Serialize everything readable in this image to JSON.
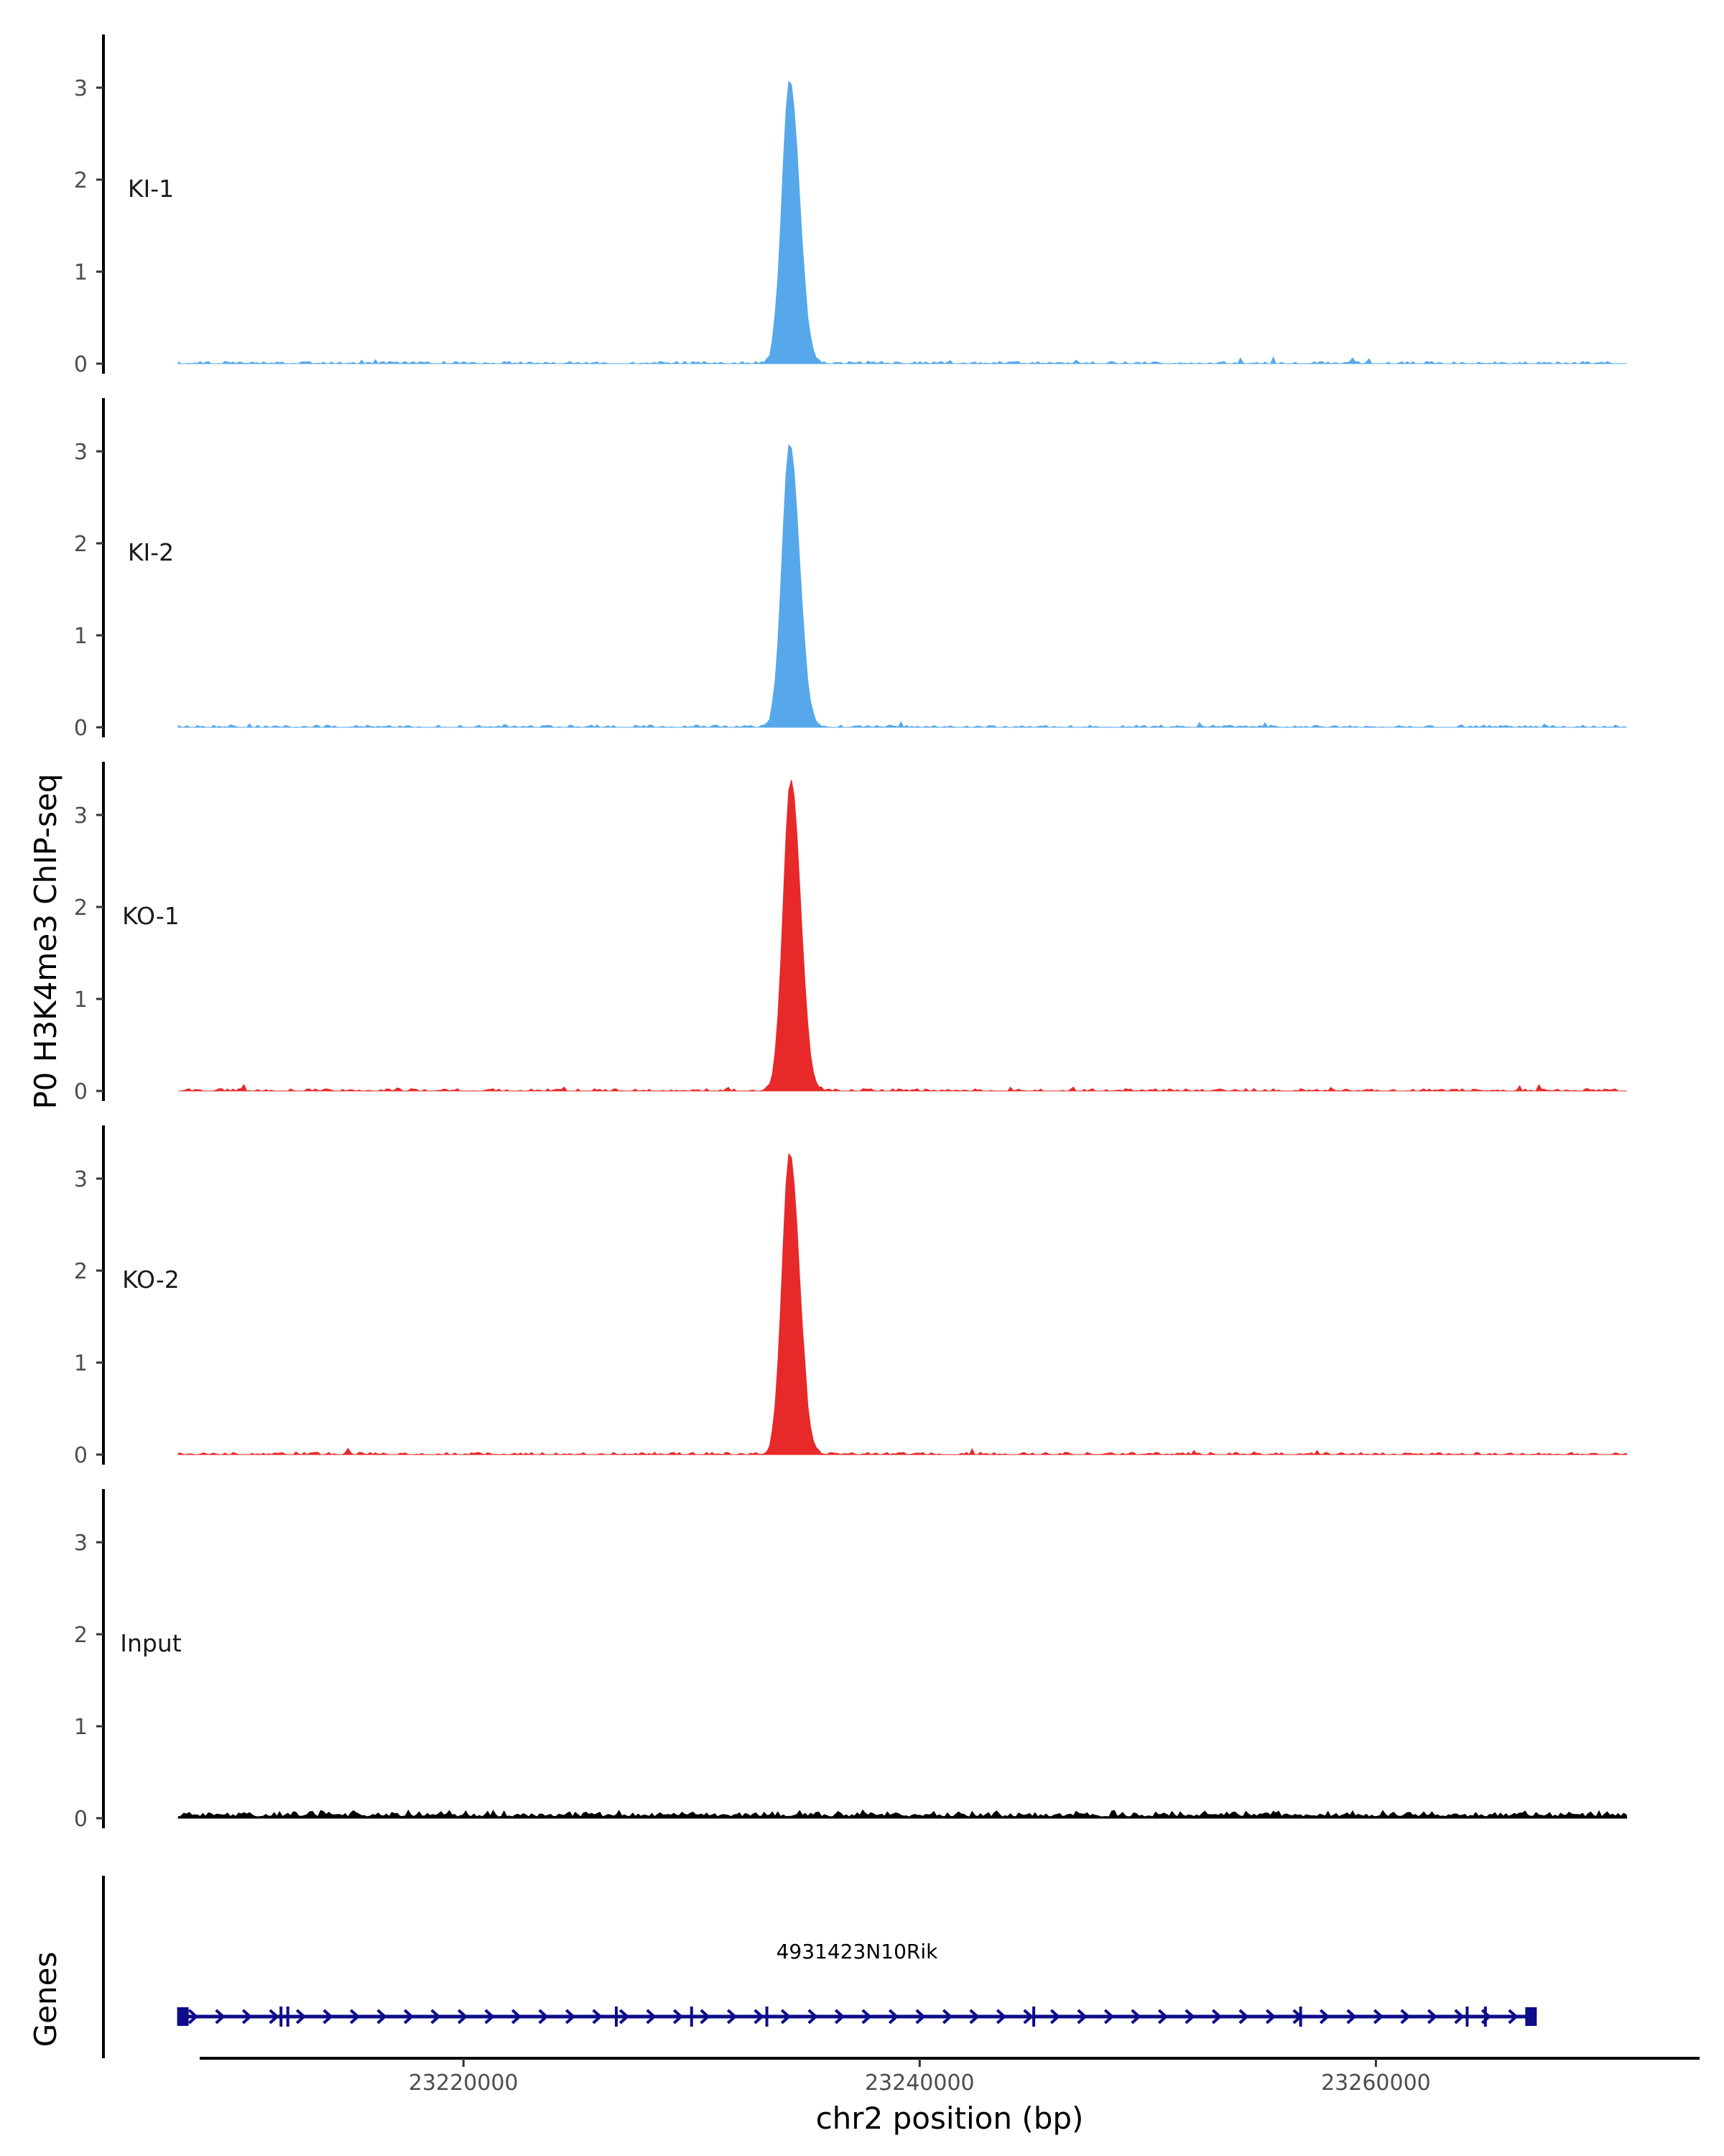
{
  "chart_data": {
    "type": "area",
    "ylabel": "P0 H3K4me3 ChIP-seq",
    "xlabel": "chr2 position (bp)",
    "xlim": [
      23208500,
      23274000
    ],
    "ylim": [
      0,
      3.5
    ],
    "y_ticks": [
      0,
      1,
      2,
      3
    ],
    "x_ticks": [
      23220000,
      23240000,
      23260000
    ],
    "x_tick_labels": [
      "23220000",
      "23240000",
      "23260000"
    ],
    "grid": false,
    "tracks": [
      {
        "name": "KI-1",
        "color": "#56a8ea",
        "peak_center": 23234300,
        "peak_height": 3.05,
        "baseline": 0.02
      },
      {
        "name": "KI-2",
        "color": "#56a8ea",
        "peak_center": 23234300,
        "peak_height": 3.05,
        "baseline": 0.02
      },
      {
        "name": "KO-1",
        "color": "#e8292a",
        "peak_center": 23234350,
        "peak_height": 3.35,
        "baseline": 0.02
      },
      {
        "name": "KO-2",
        "color": "#e8292a",
        "peak_center": 23234300,
        "peak_height": 3.25,
        "baseline": 0.02
      },
      {
        "name": "Input",
        "color": "#000000",
        "peak_center": null,
        "peak_height": 0,
        "baseline": 0.05
      }
    ],
    "genes_track": {
      "label": "Genes",
      "gene_name": "4931423N10Rik",
      "color": "#0d0d8a",
      "start": 23207500,
      "end": 23267000,
      "strand": "+",
      "exons": [
        23207700,
        23212000,
        23212300,
        23226700,
        23230000,
        23233300,
        23245000,
        23256700,
        23264000,
        23264800,
        23266800
      ]
    }
  }
}
